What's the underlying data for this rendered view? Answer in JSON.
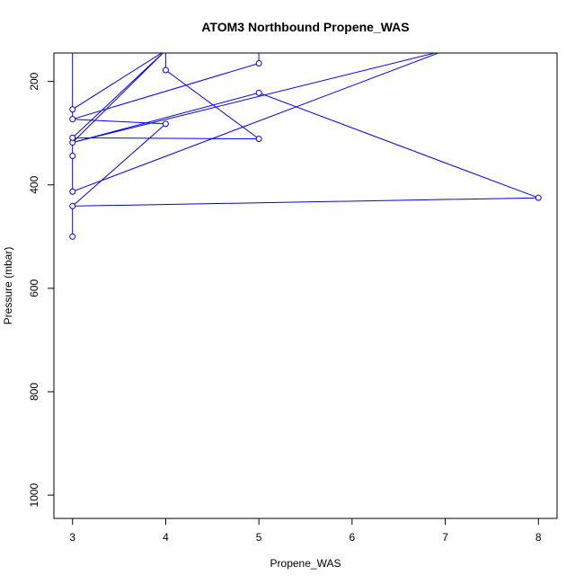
{
  "chart_data": {
    "type": "line",
    "title": "ATOM3 Northbound Propene_WAS",
    "xlabel": "Propene_WAS",
    "ylabel": "Pressure (mbar)",
    "xlim": [
      2.8,
      8.2
    ],
    "ylim": [
      1045,
      145
    ],
    "y_reversed": true,
    "x_ticks": [
      3,
      4,
      5,
      6,
      7,
      8
    ],
    "y_ticks": [
      200,
      400,
      600,
      800,
      1000
    ],
    "grid": false,
    "color": "#0000ff",
    "series": [
      {
        "points": [
          {
            "x": 3,
            "y": 500
          },
          {
            "x": 3,
            "y": 441
          },
          {
            "x": 4,
            "y": 282
          },
          {
            "x": 3,
            "y": 441
          },
          {
            "x": 8,
            "y": 425
          },
          {
            "x": 5,
            "y": 222
          },
          {
            "x": 3,
            "y": 318
          },
          {
            "x": 7,
            "y": 140
          },
          {
            "x": 3,
            "y": 413
          },
          {
            "x": 3,
            "y": 344
          },
          {
            "x": 3,
            "y": 318
          },
          {
            "x": 4,
            "y": 140
          },
          {
            "x": 3,
            "y": 309
          },
          {
            "x": 5,
            "y": 311
          },
          {
            "x": 4,
            "y": 178
          },
          {
            "x": 4,
            "y": 140
          },
          {
            "x": 3,
            "y": 140
          },
          {
            "x": 3,
            "y": 273
          },
          {
            "x": 4,
            "y": 282
          },
          {
            "x": 3,
            "y": 273
          },
          {
            "x": 5,
            "y": 165
          },
          {
            "x": 5,
            "y": 140
          },
          {
            "x": 3,
            "y": 140
          },
          {
            "x": 3,
            "y": 254
          },
          {
            "x": 4,
            "y": 140
          }
        ],
        "markers": [
          {
            "x": 3,
            "y": 500
          },
          {
            "x": 3,
            "y": 441
          },
          {
            "x": 4,
            "y": 282
          },
          {
            "x": 8,
            "y": 425
          },
          {
            "x": 5,
            "y": 222
          },
          {
            "x": 3,
            "y": 318
          },
          {
            "x": 3,
            "y": 413
          },
          {
            "x": 3,
            "y": 344
          },
          {
            "x": 3,
            "y": 309
          },
          {
            "x": 5,
            "y": 311
          },
          {
            "x": 4,
            "y": 178
          },
          {
            "x": 3,
            "y": 273
          },
          {
            "x": 5,
            "y": 165
          },
          {
            "x": 3,
            "y": 254
          }
        ]
      }
    ]
  }
}
